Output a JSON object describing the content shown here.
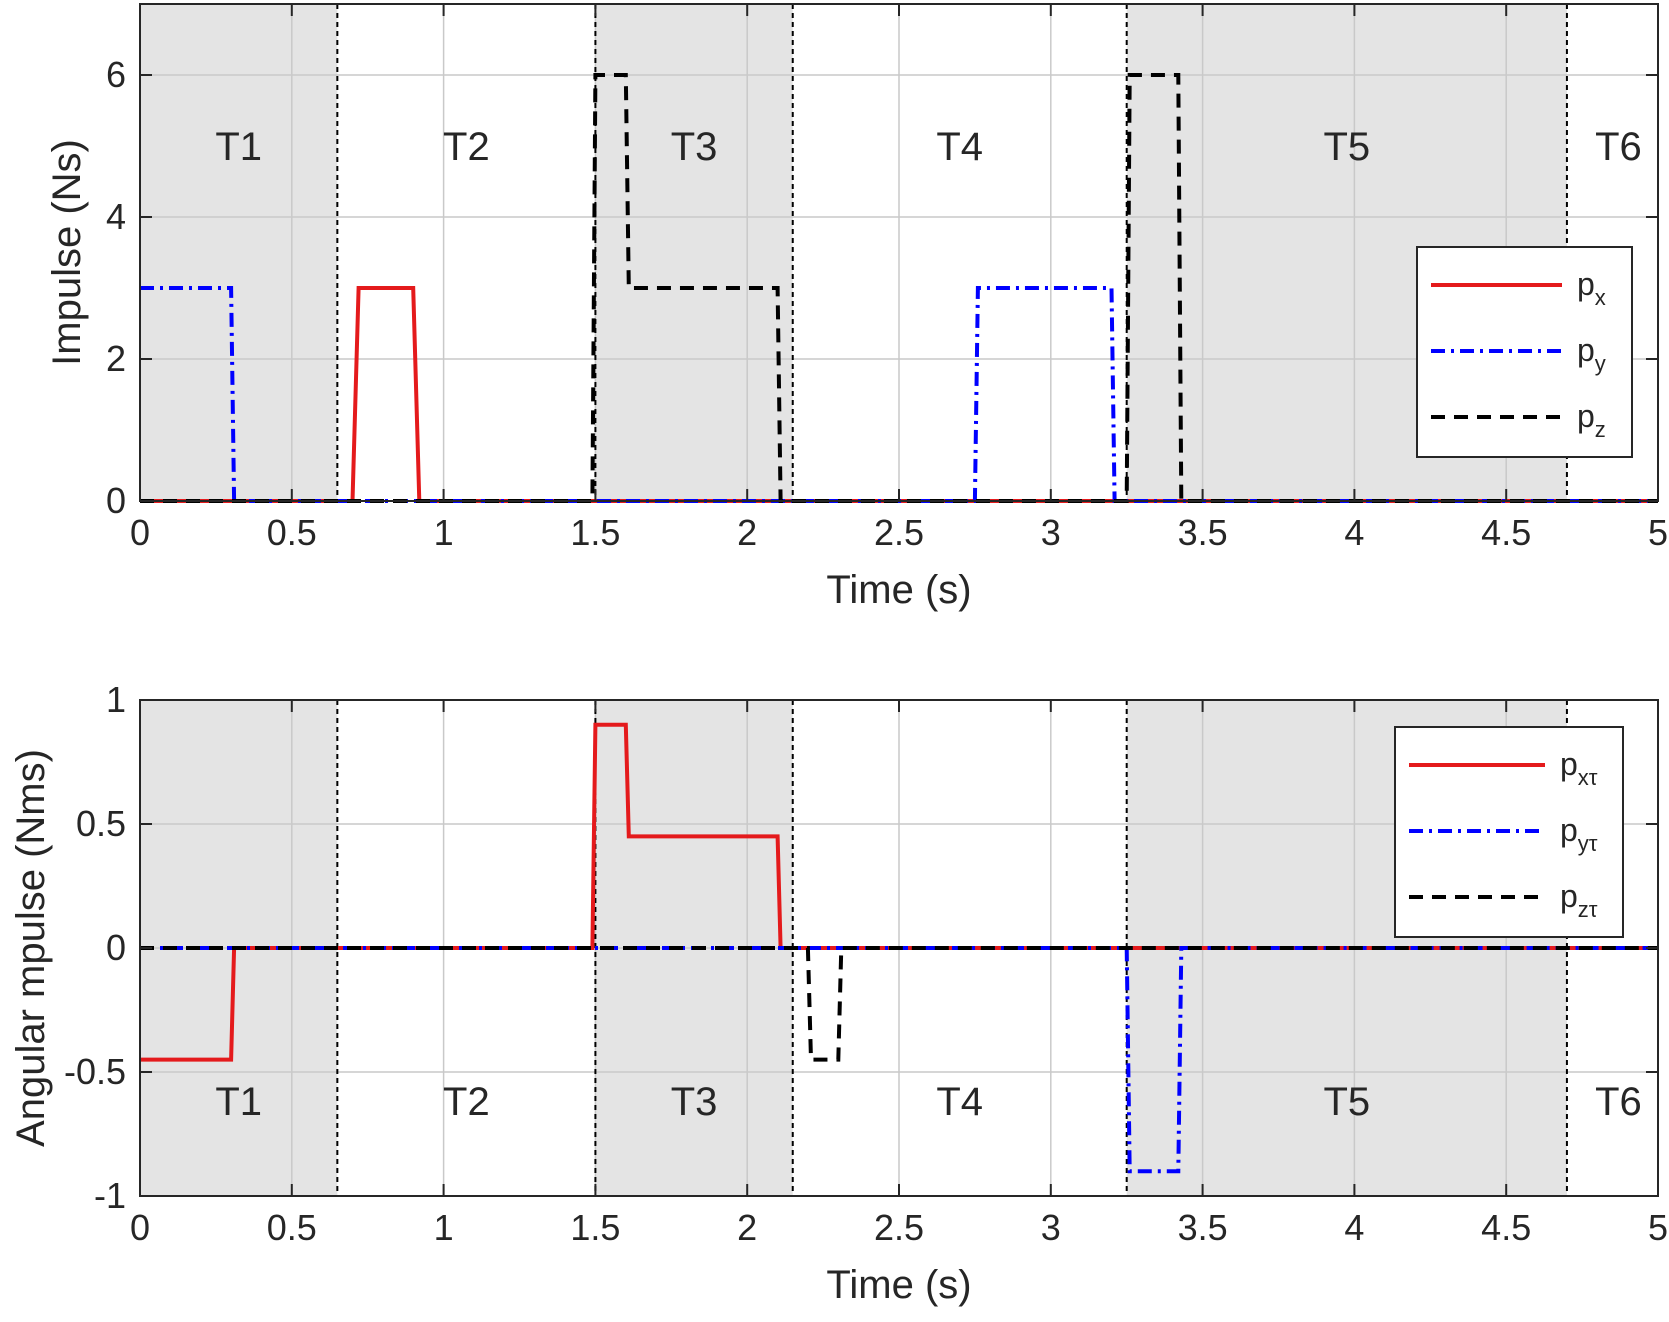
{
  "chart_data": [
    {
      "type": "line",
      "xlabel": "Time (s)",
      "ylabel": "Impulse (Ns)",
      "xlim": [
        0,
        5
      ],
      "ylim": [
        0,
        7
      ],
      "xticks": [
        0,
        0.5,
        1,
        1.5,
        2,
        2.5,
        3,
        3.5,
        4,
        4.5,
        5
      ],
      "xtick_labels": [
        "0",
        "0.5",
        "1",
        "1.5",
        "2",
        "2.5",
        "3",
        "3.5",
        "4",
        "4.5",
        "5"
      ],
      "yticks": [
        0,
        2,
        4,
        6
      ],
      "ytick_labels": [
        "0",
        "2",
        "4",
        "6"
      ],
      "grid": true,
      "legend_position": "right",
      "phases": [
        {
          "label": "T1",
          "start": 0,
          "end": 0.65,
          "shaded": true
        },
        {
          "label": "T2",
          "start": 0.65,
          "end": 1.5,
          "shaded": false
        },
        {
          "label": "T3",
          "start": 1.5,
          "end": 2.15,
          "shaded": true
        },
        {
          "label": "T4",
          "start": 2.15,
          "end": 3.25,
          "shaded": false
        },
        {
          "label": "T5",
          "start": 3.25,
          "end": 4.7,
          "shaded": true
        },
        {
          "label": "T6",
          "start": 4.7,
          "end": 5,
          "shaded": false
        }
      ],
      "series": [
        {
          "name": "p",
          "sub": "x",
          "color": "#e41a1c",
          "style": "solid",
          "x": [
            0,
            0.7,
            0.72,
            0.9,
            0.92,
            5
          ],
          "y": [
            0,
            0,
            3,
            3,
            0,
            0
          ]
        },
        {
          "name": "p",
          "sub": "y",
          "color": "#0000ff",
          "style": "dashdot",
          "x": [
            0,
            0.3,
            0.31,
            2.75,
            2.76,
            3.2,
            3.21,
            5
          ],
          "y": [
            3,
            3,
            0,
            0,
            3,
            3,
            0,
            0
          ]
        },
        {
          "name": "p",
          "sub": "z",
          "color": "#000000",
          "style": "dashed",
          "x": [
            0,
            1.49,
            1.5,
            1.6,
            1.61,
            2.1,
            2.11,
            3.25,
            3.26,
            3.42,
            3.43,
            5
          ],
          "y": [
            0,
            0,
            6,
            6,
            3,
            3,
            0,
            0,
            6,
            6,
            0,
            0
          ]
        }
      ]
    },
    {
      "type": "line",
      "xlabel": "Time (s)",
      "ylabel": "Angular mpulse (Nms)",
      "xlim": [
        0,
        5
      ],
      "ylim": [
        -1,
        1
      ],
      "xticks": [
        0,
        0.5,
        1,
        1.5,
        2,
        2.5,
        3,
        3.5,
        4,
        4.5,
        5
      ],
      "xtick_labels": [
        "0",
        "0.5",
        "1",
        "1.5",
        "2",
        "2.5",
        "3",
        "3.5",
        "4",
        "4.5",
        "5"
      ],
      "yticks": [
        -1,
        -0.5,
        0,
        0.5,
        1
      ],
      "ytick_labels": [
        "-1",
        "-0.5",
        "0",
        "0.5",
        "1"
      ],
      "grid": true,
      "legend_position": "top-right",
      "phases": [
        {
          "label": "T1",
          "start": 0,
          "end": 0.65,
          "shaded": true
        },
        {
          "label": "T2",
          "start": 0.65,
          "end": 1.5,
          "shaded": false
        },
        {
          "label": "T3",
          "start": 1.5,
          "end": 2.15,
          "shaded": true
        },
        {
          "label": "T4",
          "start": 2.15,
          "end": 3.25,
          "shaded": false
        },
        {
          "label": "T5",
          "start": 3.25,
          "end": 4.7,
          "shaded": true
        },
        {
          "label": "T6",
          "start": 4.7,
          "end": 5,
          "shaded": false
        }
      ],
      "series": [
        {
          "name": "p",
          "sub": "xτ",
          "color": "#e41a1c",
          "style": "solid",
          "x": [
            0,
            0.3,
            0.31,
            1.49,
            1.5,
            1.6,
            1.61,
            2.1,
            2.11,
            5
          ],
          "y": [
            -0.45,
            -0.45,
            0,
            0,
            0.9,
            0.9,
            0.45,
            0.45,
            0,
            0
          ]
        },
        {
          "name": "p",
          "sub": "yτ",
          "color": "#0000ff",
          "style": "dashdot",
          "x": [
            0,
            3.25,
            3.26,
            3.42,
            3.43,
            5
          ],
          "y": [
            0,
            0,
            -0.9,
            -0.9,
            0,
            0
          ]
        },
        {
          "name": "p",
          "sub": "zτ",
          "color": "#000000",
          "style": "dashed",
          "x": [
            0,
            2.2,
            2.21,
            2.3,
            2.31,
            5
          ],
          "y": [
            0,
            0,
            -0.45,
            -0.45,
            0,
            0
          ]
        }
      ]
    }
  ]
}
